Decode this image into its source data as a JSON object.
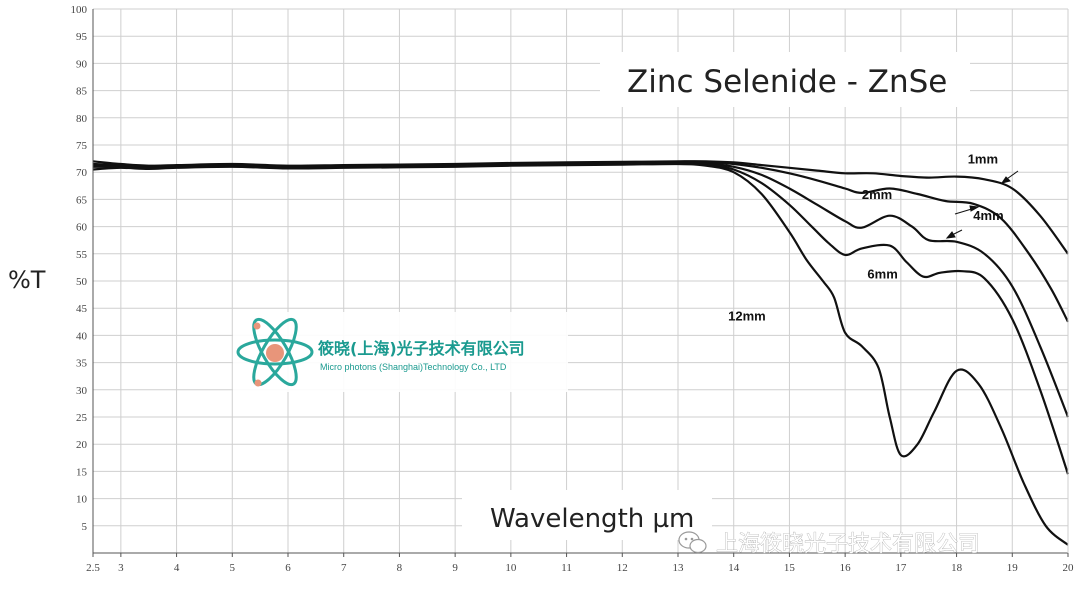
{
  "chart_data": {
    "type": "line",
    "title": "Zinc Selenide - ZnSe",
    "xlabel": "Wavelength µm",
    "ylabel": "%T",
    "xlim": [
      2.5,
      20
    ],
    "ylim": [
      0,
      100
    ],
    "x_ticks": [
      "2.5",
      "3",
      "4",
      "5",
      "6",
      "7",
      "8",
      "9",
      "10",
      "11",
      "12",
      "13",
      "14",
      "15",
      "16",
      "17",
      "18",
      "19",
      "20"
    ],
    "y_ticks": [
      "5",
      "10",
      "15",
      "20",
      "25",
      "30",
      "35",
      "40",
      "45",
      "50",
      "55",
      "60",
      "65",
      "70",
      "75",
      "80",
      "85",
      "90",
      "95",
      "100"
    ],
    "grid": true,
    "series": [
      {
        "name": "1mm",
        "x": [
          2.5,
          3,
          3.5,
          4,
          5,
          6,
          7,
          8,
          9,
          10,
          11,
          12,
          13,
          13.5,
          14,
          14.5,
          15,
          15.5,
          16,
          16.5,
          17,
          17.5,
          18,
          18.5,
          19,
          19.5,
          20
        ],
        "y": [
          72,
          71.5,
          71.2,
          71.3,
          71.5,
          71.2,
          71.3,
          71.4,
          71.5,
          71.7,
          71.8,
          71.9,
          72,
          72,
          71.8,
          71.3,
          70.8,
          70.3,
          69.8,
          69.8,
          69.3,
          69,
          69.2,
          68.7,
          67,
          62,
          55
        ]
      },
      {
        "name": "2mm",
        "x": [
          2.5,
          3,
          3.5,
          4,
          5,
          6,
          7,
          8,
          9,
          10,
          11,
          12,
          13,
          13.5,
          14,
          14.5,
          15,
          15.5,
          16,
          16.3,
          16.8,
          17.3,
          17.8,
          18.3,
          18.8,
          19.3,
          19.7,
          20
        ],
        "y": [
          71.5,
          71.3,
          71.1,
          71.2,
          71.4,
          71.1,
          71.2,
          71.3,
          71.4,
          71.6,
          71.7,
          71.8,
          71.9,
          71.8,
          71.5,
          70.8,
          69.8,
          68.5,
          67,
          66.2,
          67,
          66,
          64.7,
          64.2,
          61.5,
          55,
          48.5,
          42.5
        ]
      },
      {
        "name": "4mm",
        "x": [
          2.5,
          3,
          3.5,
          4,
          5,
          6,
          7,
          8,
          9,
          10,
          11,
          12,
          13,
          13.5,
          14,
          14.5,
          15,
          15.5,
          16,
          16.3,
          16.8,
          17.2,
          17.5,
          18,
          18.5,
          19,
          19.5,
          20
        ],
        "y": [
          71.2,
          71.2,
          71,
          71.1,
          71.3,
          71,
          71.1,
          71.2,
          71.3,
          71.5,
          71.6,
          71.7,
          71.8,
          71.6,
          71,
          69.5,
          67,
          64,
          61,
          59.8,
          62,
          60,
          57.5,
          57.2,
          55,
          49,
          38,
          25
        ]
      },
      {
        "name": "6mm",
        "x": [
          2.5,
          3,
          3.5,
          4,
          5,
          6,
          7,
          8,
          9,
          10,
          11,
          12,
          13,
          13.5,
          14,
          14.5,
          15,
          15.4,
          15.7,
          16,
          16.3,
          16.8,
          17.1,
          17.4,
          17.7,
          18.1,
          18.5,
          19,
          19.5,
          20
        ],
        "y": [
          71,
          71,
          70.9,
          71,
          71.2,
          70.9,
          71,
          71.1,
          71.2,
          71.4,
          71.5,
          71.6,
          71.7,
          71.5,
          70.5,
          68,
          64,
          60,
          57,
          54.8,
          56,
          56.5,
          53.5,
          50.8,
          51.5,
          51.8,
          50.5,
          43,
          30,
          14.5
        ]
      },
      {
        "name": "12mm",
        "x": [
          2.5,
          3,
          3.5,
          4,
          5,
          6,
          7,
          8,
          9,
          10,
          11,
          12,
          13,
          13.5,
          14,
          14.5,
          15,
          15.3,
          15.6,
          15.8,
          16,
          16.3,
          16.6,
          16.8,
          17,
          17.3,
          17.6,
          18,
          18.4,
          18.8,
          19.2,
          19.6,
          20
        ],
        "y": [
          70.5,
          70.8,
          70.6,
          70.8,
          71,
          70.7,
          70.8,
          70.9,
          71,
          71.2,
          71.3,
          71.4,
          71.5,
          71.2,
          70,
          66,
          59,
          54,
          50,
          47,
          40.5,
          38,
          34,
          25,
          18,
          20,
          26,
          33.5,
          31,
          23,
          13,
          5,
          1.5
        ]
      }
    ],
    "annotations": [
      {
        "text": "1mm",
        "x": 18.2,
        "y": 71.6
      },
      {
        "text": "2mm",
        "x": 16.3,
        "y": 65.1
      },
      {
        "text": "4mm",
        "x": 18.3,
        "y": 61.2
      },
      {
        "text": "6mm",
        "x": 16.4,
        "y": 50.5
      },
      {
        "text": "12mm",
        "x": 13.9,
        "y": 42.7
      }
    ]
  },
  "logo": {
    "name_cn": "筱晓(上海)光子技术有限公司",
    "name_en": "Micro photons (Shanghai)Technology Co., LTD"
  },
  "watermark": {
    "icon": "wechat-icon",
    "text": "上海筱晓光子技术有限公司"
  }
}
